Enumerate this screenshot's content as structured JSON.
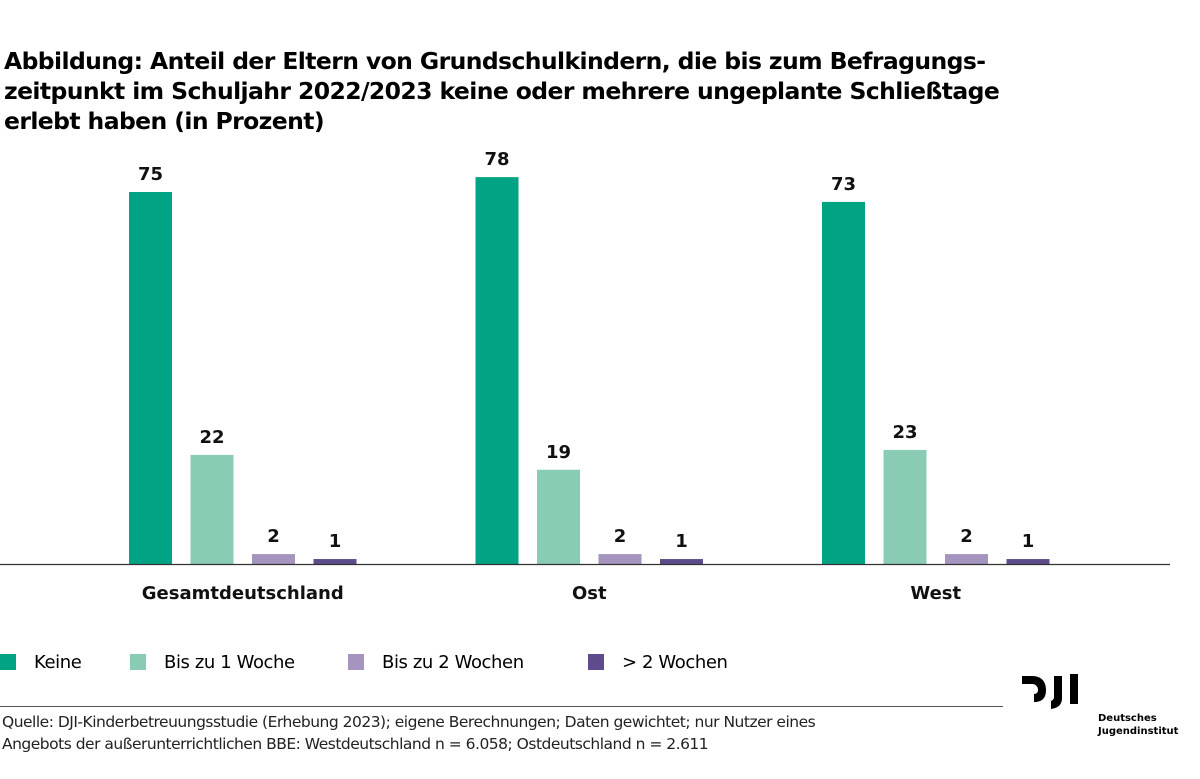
{
  "title": "Abbildung: Anteil der Eltern von Grundschulkindern, die bis zum Befragungs-zeitpunkt im Schuljahr 2022/2023 keine oder mehrere ungeplante Schließtage erlebt haben (in Prozent)",
  "title_lines": [
    "Abbildung: Anteil der Eltern von Grundschulkindern, die bis zum Befragungs-",
    "zeitpunkt im Schuljahr 2022/2023 keine oder mehrere ungeplante Schließtage",
    "erlebt haben (in Prozent)"
  ],
  "chart_data": {
    "type": "bar",
    "title": "Anteil der Eltern von Grundschulkindern, die bis zum Befragungszeitpunkt im Schuljahr 2022/2023 keine oder mehrere ungeplante Schließtage erlebt haben (in Prozent)",
    "categories": [
      "Gesamtdeutschland",
      "Ost",
      "West"
    ],
    "series": [
      {
        "name": "Keine",
        "color": "#00A383",
        "values": [
          75,
          78,
          73
        ]
      },
      {
        "name": "Bis zu 1 Woche",
        "color": "#8ACBB4",
        "values": [
          22,
          19,
          23
        ]
      },
      {
        "name": "Bis zu 2 Wochen",
        "color": "#A595BE",
        "values": [
          2,
          2,
          2
        ]
      },
      {
        "name": "> 2 Wochen",
        "color": "#5E4B8B",
        "values": [
          1,
          1,
          1
        ]
      }
    ],
    "xlabel": "",
    "ylabel": "",
    "ylim": [
      0,
      80
    ],
    "grid": false,
    "data_labels": true,
    "legend_position": "bottom-left"
  },
  "legend": [
    {
      "label": "Keine",
      "color": "#00A383"
    },
    {
      "label": "Bis zu 1 Woche",
      "color": "#8ACBB4"
    },
    {
      "label": "Bis zu 2 Wochen",
      "color": "#A595BE"
    },
    {
      "label": "> 2 Wochen",
      "color": "#5E4B8B"
    }
  ],
  "source": "Quelle: DJI-Kinderbetreuungsstudie (Erhebung 2023); eigene Berechnungen; Daten gewichtet; nur Nutzer eines Angebots der außerunterrichtlichen BBE: Westdeutschland n = 6.058; Ostdeutschland n = 2.611",
  "source_lines": [
    "Quelle: DJI-Kinderbetreuungsstudie (Erhebung 2023); eigene Berechnungen; Daten gewichtet; nur Nutzer eines",
    "Angebots der außerunterrichtlichen BBE: Westdeutschland n = 6.058; Ostdeutschland n = 2.611"
  ],
  "logo": {
    "mark": "DJI",
    "line1": "Deutsches",
    "line2": "Jugendinstitut"
  }
}
